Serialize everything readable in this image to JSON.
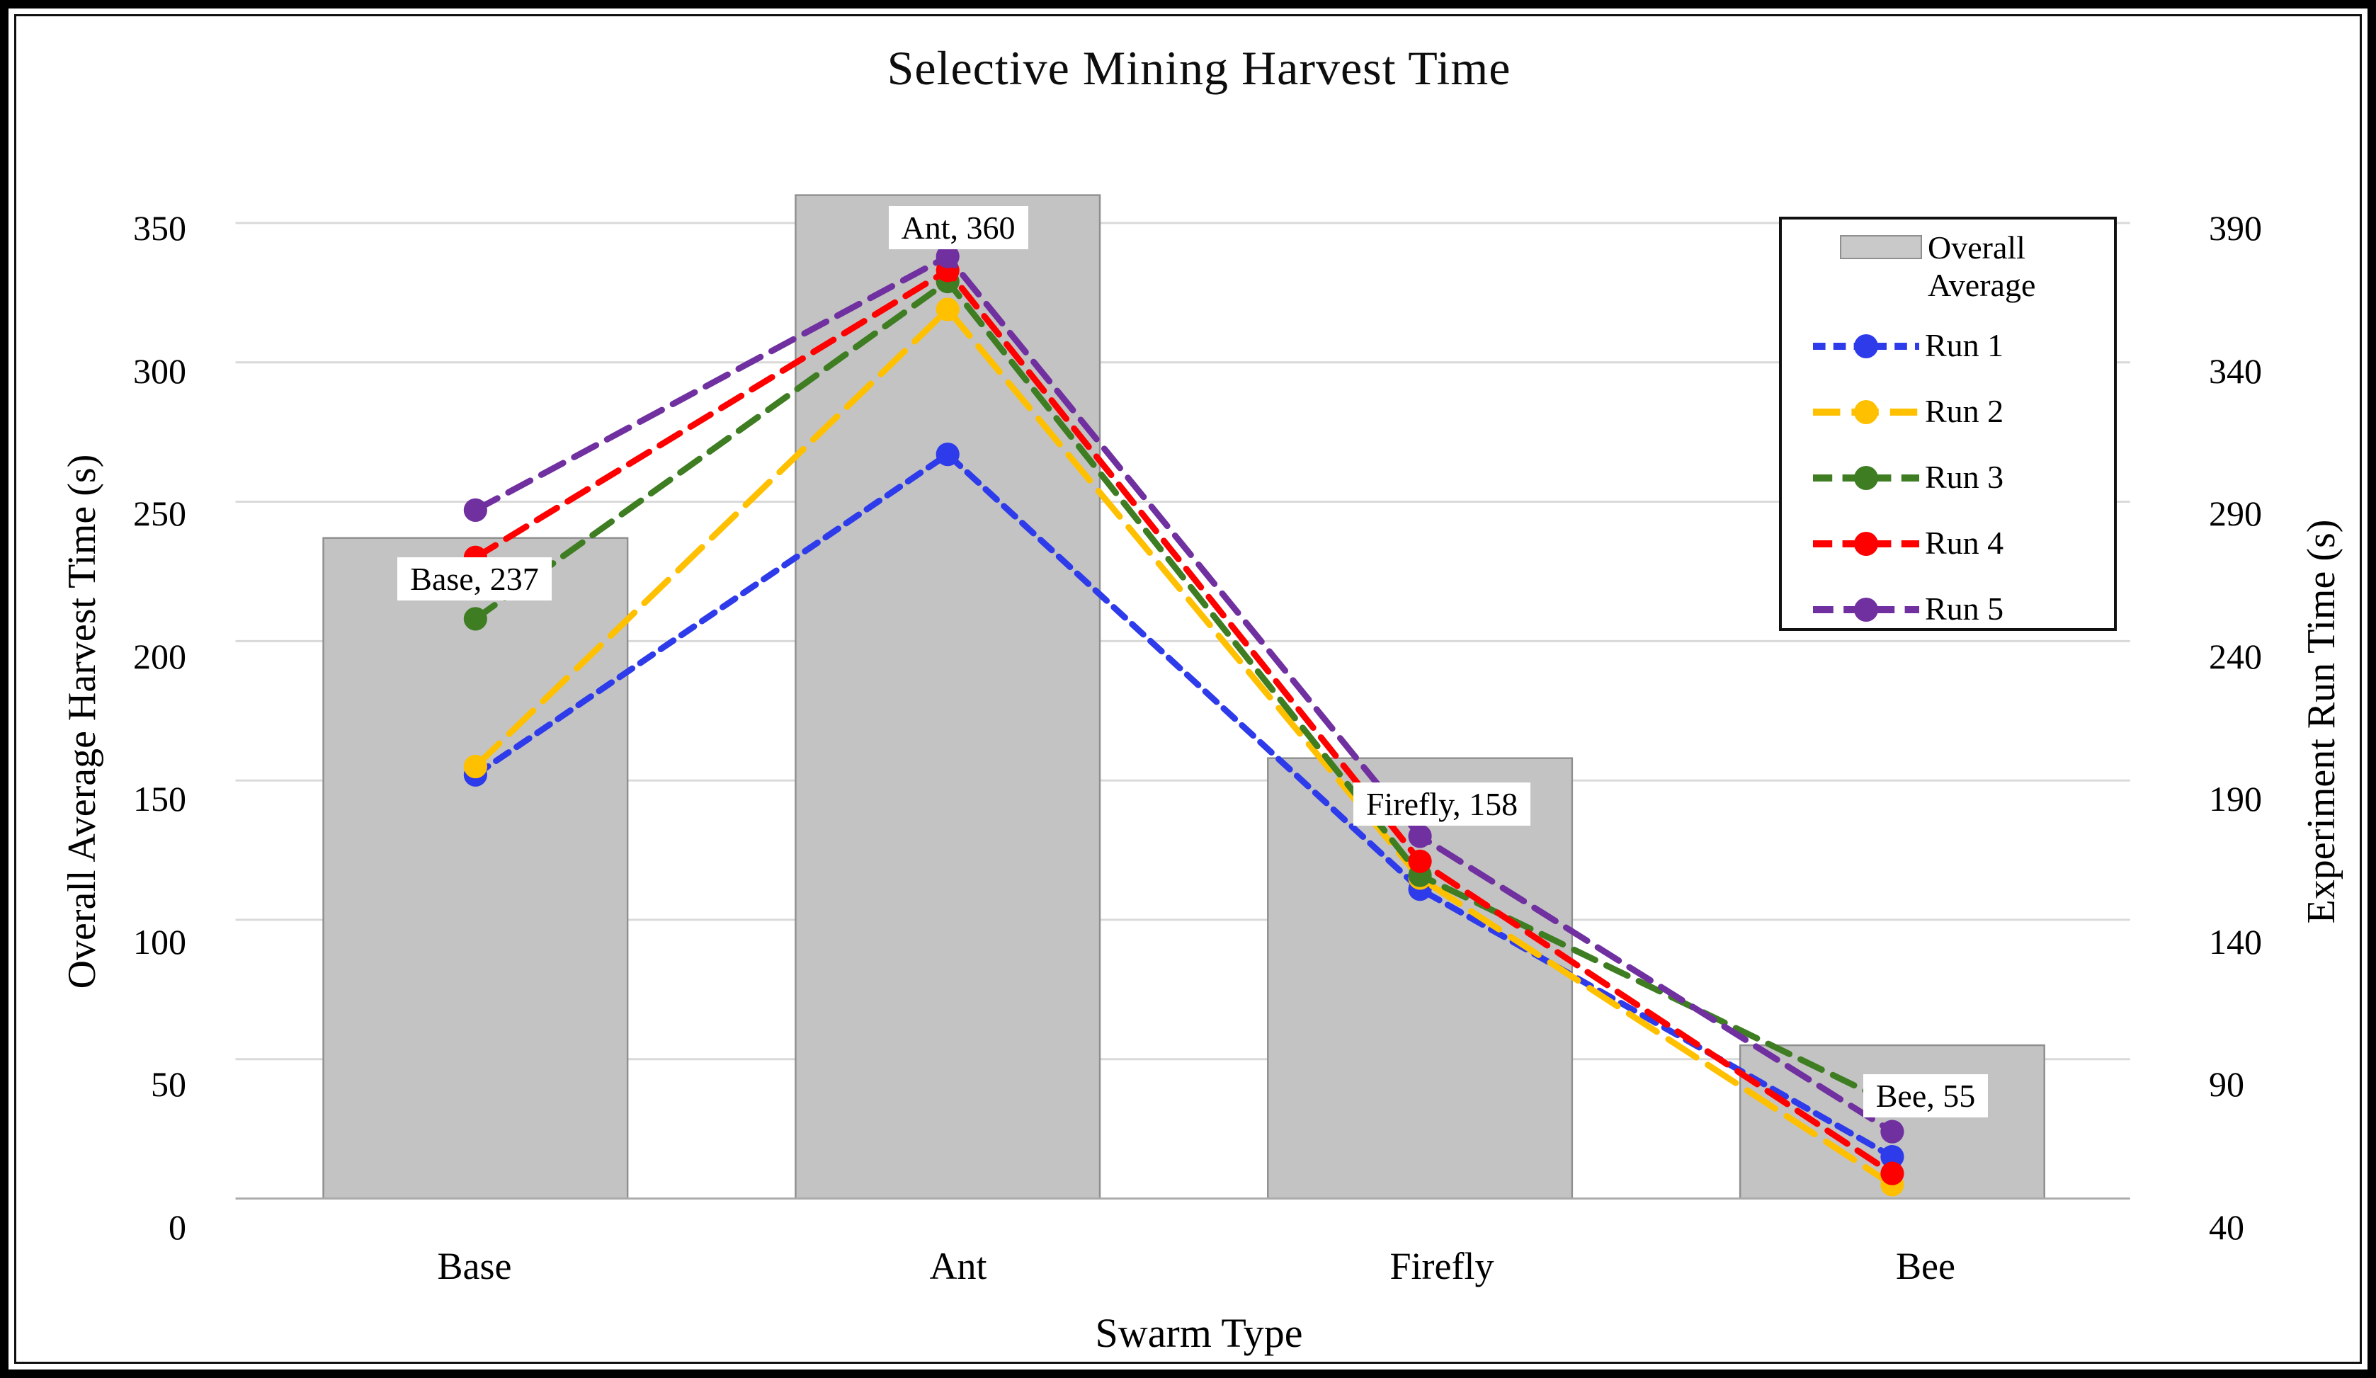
{
  "chart_data": {
    "type": "combo-bar-line",
    "title": "Selective Mining Harvest Time",
    "categories": [
      "Base",
      "Ant",
      "Firefly",
      "Bee"
    ],
    "bar_series": {
      "name": "Overall Average",
      "axis": "left",
      "values": [
        237,
        360,
        158,
        55
      ],
      "labels": [
        "Base, 237",
        "Ant, 360",
        "Firefly, 158",
        "Bee, 55"
      ],
      "fill_color": "#C3C3C3",
      "border_color": "#8f8f8f"
    },
    "line_series": [
      {
        "name": "Run 1",
        "axis": "right",
        "color": "#2E3BEA",
        "dash": [
          22,
          14
        ],
        "values": [
          192,
          307,
          151,
          55
        ]
      },
      {
        "name": "Run 2",
        "axis": "right",
        "color": "#FFC000",
        "dash": [
          48,
          20
        ],
        "values": [
          195,
          359,
          155,
          45
        ]
      },
      {
        "name": "Run 3",
        "axis": "right",
        "color": "#3E7D22",
        "dash": [
          34,
          18
        ],
        "values": [
          248,
          369,
          156,
          74
        ]
      },
      {
        "name": "Run 4",
        "axis": "right",
        "color": "#FF0000",
        "dash": [
          34,
          18
        ],
        "values": [
          270,
          373,
          161,
          49
        ]
      },
      {
        "name": "Run 5",
        "axis": "right",
        "color": "#7030A0",
        "dash": [
          36,
          18
        ],
        "values": [
          287,
          378,
          170,
          64
        ]
      }
    ],
    "axes": {
      "left": {
        "title": "Overall Average Harvest Time (s)",
        "min": 0,
        "max": 350,
        "step": 50,
        "ticks": [
          "0",
          "50",
          "100",
          "150",
          "200",
          "250",
          "300",
          "350"
        ]
      },
      "right": {
        "title": "Experiment Run Time (s)",
        "min": 40,
        "max": 390,
        "step": 50,
        "ticks": [
          "40",
          "90",
          "140",
          "190",
          "240",
          "290",
          "340",
          "390"
        ]
      },
      "x": {
        "title": "Swarm Type"
      }
    },
    "grid": {
      "horizontal": true,
      "color": "#D9D9D9",
      "baseline_color": "#ABABAB"
    },
    "legend": {
      "position": "top-right",
      "items": [
        "Overall Average",
        "Run 1",
        "Run 2",
        "Run 3",
        "Run 4",
        "Run 5"
      ]
    }
  }
}
